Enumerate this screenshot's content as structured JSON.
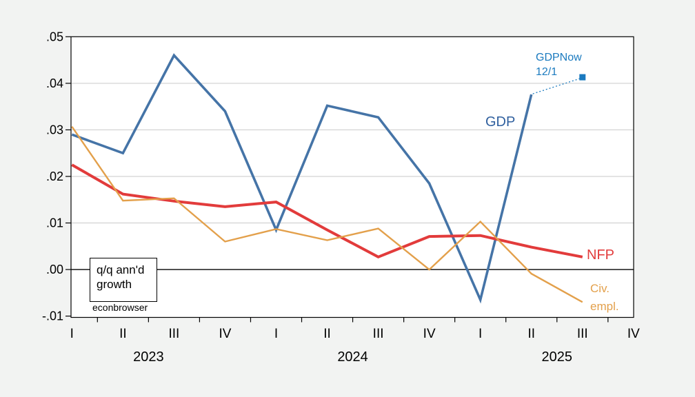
{
  "chart_data": {
    "type": "line",
    "description": "Quarterly annualized growth of GDP, nonfarm payrolls and civilian employment, 2023Q1-2025Q4",
    "categories": [
      "2023Q1",
      "2023Q2",
      "2023Q3",
      "2023Q4",
      "2024Q1",
      "2024Q2",
      "2024Q3",
      "2024Q4",
      "2025Q1",
      "2025Q2",
      "2025Q3",
      "2025Q4"
    ],
    "x_axis": {
      "quarter_labels": [
        "I",
        "II",
        "III",
        "IV",
        "I",
        "II",
        "III",
        "IV",
        "I",
        "II",
        "III",
        "IV"
      ],
      "year_labels": [
        "2023",
        "2024",
        "2025"
      ]
    },
    "y_axis": {
      "ylim": [
        -0.01,
        0.05
      ],
      "tick_step": 0.01,
      "ticks": [
        {
          "label": ".05",
          "value": 0.05
        },
        {
          "label": ".04",
          "value": 0.04
        },
        {
          "label": ".03",
          "value": 0.03
        },
        {
          "label": ".02",
          "value": 0.02
        },
        {
          "label": ".01",
          "value": 0.01
        },
        {
          "label": ".00",
          "value": 0.0
        },
        {
          "label": "-.01",
          "value": -0.01
        }
      ]
    },
    "grid": {
      "horizontal": true,
      "vertical": false,
      "gridline_color": "#c9c9c9",
      "zero_line_color": "#000000"
    },
    "series": [
      {
        "name": "GDP",
        "color": "#4574a7",
        "stroke_width": 3.6,
        "values": [
          0.029,
          0.025,
          0.046,
          0.034,
          0.0085,
          0.0352,
          0.0327,
          0.0185,
          -0.0065,
          0.0376,
          null,
          null
        ]
      },
      {
        "name": "NFP",
        "color": "#e23b3b",
        "stroke_width": 4,
        "values": [
          0.0225,
          0.0162,
          0.0147,
          0.0135,
          0.0145,
          0.0085,
          0.0027,
          0.0071,
          0.0073,
          0.0048,
          0.0027,
          null
        ]
      },
      {
        "name": "Civ. empl.",
        "color": "#e3a04b",
        "stroke_width": 2.4,
        "values": [
          0.0307,
          0.0148,
          0.0153,
          0.006,
          0.0087,
          0.0063,
          0.0088,
          0.0,
          0.0103,
          -0.0009,
          -0.007,
          null
        ]
      }
    ],
    "forecast_point": {
      "label": "GDPNow 12/1",
      "series": "GDP",
      "quarter": "2025Q3",
      "x_index": 10,
      "value": 0.0413,
      "color": "#1a7abf",
      "connected_from_index": 9,
      "marker": "square"
    },
    "labels": {
      "gdp": {
        "text": "GDP",
        "color": "#2f5f9e"
      },
      "gdpnow": {
        "line1": "GDPNow",
        "line2": "12/1",
        "color": "#1a7abf"
      },
      "nfp": {
        "text": "NFP",
        "color": "#e23b3b"
      },
      "civ": {
        "line1": "Civ.",
        "line2": "empl.",
        "color": "#e3a04b"
      },
      "note_box": {
        "line1": "q/q ann'd",
        "line2": "growth"
      },
      "watermark": {
        "text": "econbrowser",
        "color": "#000000"
      }
    },
    "colors": {
      "plot_background": "#ffffff",
      "outer_background": "#f2f3f2",
      "border": "#000000",
      "gridline": "#c9c9c9",
      "zero_line": "#000000",
      "axis_text": "#000000"
    },
    "legend": {
      "visible": false,
      "style": "inline-labels"
    }
  }
}
